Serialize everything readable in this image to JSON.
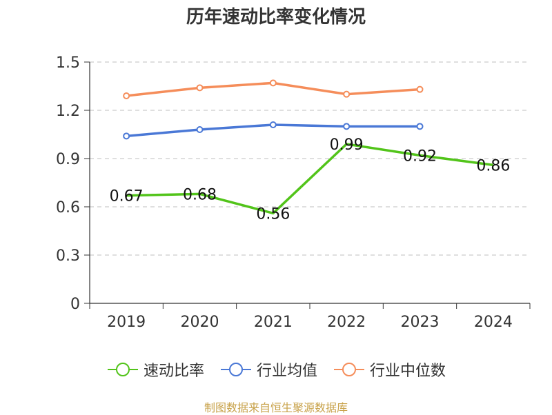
{
  "title": "历年速动比率变化情况",
  "source_note": "制图数据来自恒生聚源数据库",
  "colors": {
    "速动比率": "#52c41a",
    "行业均值": "#4a78d6",
    "行业中位数": "#f58d5a",
    "grid": "#cccccc",
    "axis": "#333333",
    "text": "#333333"
  },
  "chart_data": {
    "type": "line",
    "title": "历年速动比率变化情况",
    "categories": [
      "2019",
      "2020",
      "2021",
      "2022",
      "2023",
      "2024"
    ],
    "ylim": [
      0,
      1.5
    ],
    "yticks": [
      "0",
      "0.3",
      "0.6",
      "0.9",
      "1.2",
      "1.5"
    ],
    "grid": "horizontal dashed",
    "legend": "bottom-center",
    "series": [
      {
        "name": "速动比率",
        "values": [
          0.67,
          0.68,
          0.56,
          0.99,
          0.92,
          0.86
        ],
        "labels": [
          "0.67",
          "0.68",
          "0.56",
          "0.99",
          "0.92",
          "0.86"
        ]
      },
      {
        "name": "行业均值",
        "values": [
          1.04,
          1.08,
          1.11,
          1.1,
          1.1,
          null
        ]
      },
      {
        "name": "行业中位数",
        "values": [
          1.29,
          1.34,
          1.37,
          1.3,
          1.33,
          null
        ]
      }
    ]
  }
}
